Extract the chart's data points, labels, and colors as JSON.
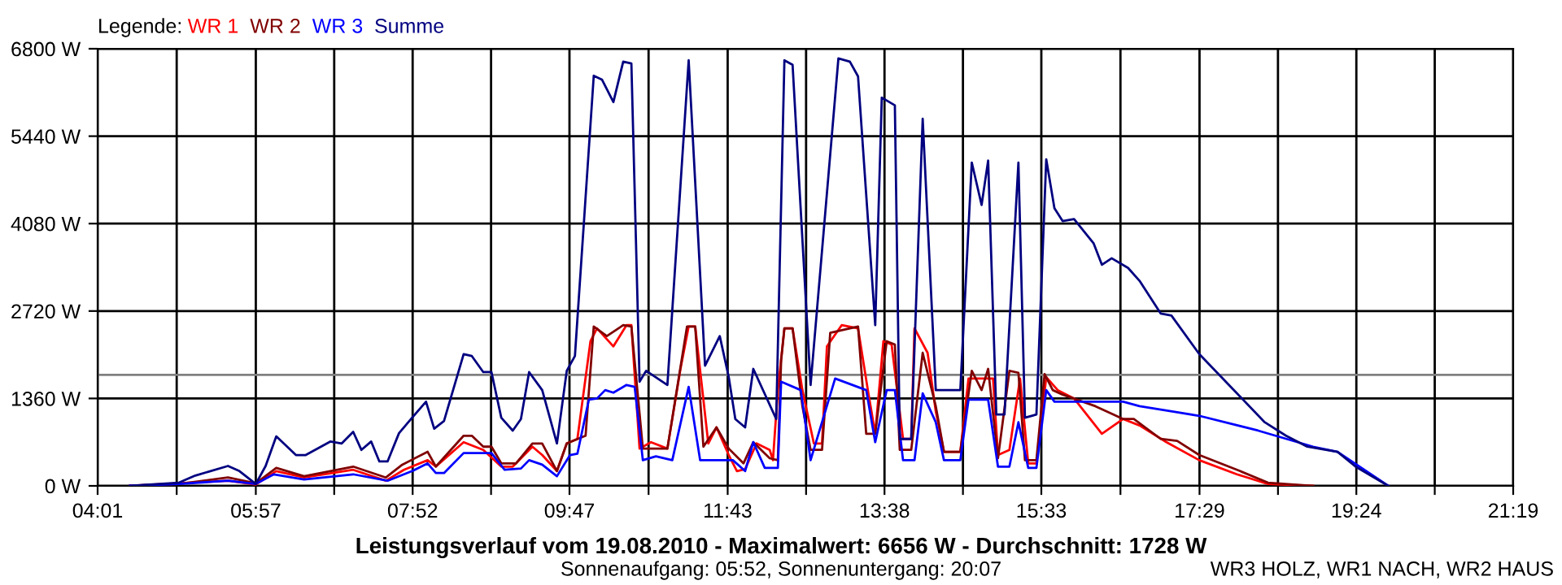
{
  "chart_data": {
    "type": "line",
    "title": "Leistungsverlauf vom 19.08.2010 - Maximalwert: 6656 W - Durchschnitt: 1728 W",
    "subtitle": "Sonnenaufgang: 05:52, Sonnenuntergang: 20:07",
    "legend_title": "Legende:",
    "annotations": [
      "WR3 HOLZ, WR1 NACH, WR2 HAUS"
    ],
    "xlim": [
      4.0167,
      21.3167
    ],
    "ylim": [
      0,
      6800
    ],
    "xticks": [
      {
        "value": 4.0167,
        "label": "04:01"
      },
      {
        "value": 4.983,
        "label": null
      },
      {
        "value": 5.95,
        "label": "05:57"
      },
      {
        "value": 6.908,
        "label": null
      },
      {
        "value": 7.8667,
        "label": "07:52"
      },
      {
        "value": 8.825,
        "label": null
      },
      {
        "value": 9.7833,
        "label": "09:47"
      },
      {
        "value": 10.75,
        "label": null
      },
      {
        "value": 11.7167,
        "label": "11:43"
      },
      {
        "value": 12.675,
        "label": null
      },
      {
        "value": 13.6333,
        "label": "13:38"
      },
      {
        "value": 14.592,
        "label": null
      },
      {
        "value": 15.55,
        "label": "15:33"
      },
      {
        "value": 16.517,
        "label": null
      },
      {
        "value": 17.4833,
        "label": "17:29"
      },
      {
        "value": 18.442,
        "label": null
      },
      {
        "value": 19.4,
        "label": "19:24"
      },
      {
        "value": 20.358,
        "label": null
      },
      {
        "value": 21.3167,
        "label": "21:19"
      }
    ],
    "yticks": [
      {
        "value": 0,
        "label": "0 W"
      },
      {
        "value": 1360,
        "label": "1360 W"
      },
      {
        "value": 2720,
        "label": "2720 W"
      },
      {
        "value": 4080,
        "label": "4080 W"
      },
      {
        "value": 5440,
        "label": "5440 W"
      },
      {
        "value": 6800,
        "label": "6800 W"
      }
    ],
    "grid": true,
    "legend": "top left",
    "marker": "none",
    "line_style": "solid",
    "ref_lines": [
      {
        "axis": "y",
        "value": 1728,
        "color": "#808080"
      }
    ],
    "series": [
      {
        "name": "WR 1",
        "color": "#ff0000",
        "x": [
          4.41,
          5.61,
          5.95,
          6.2,
          6.54,
          7.14,
          7.54,
          7.76,
          8.05,
          8.15,
          8.49,
          8.73,
          8.95,
          9.09,
          9.33,
          9.45,
          9.63,
          9.75,
          9.88,
          10.04,
          10.12,
          10.32,
          10.48,
          10.54,
          10.64,
          10.78,
          10.98,
          11.14,
          11.24,
          11.32,
          11.48,
          11.58,
          11.73,
          11.83,
          11.93,
          12.07,
          12.23,
          12.27,
          12.33,
          12.41,
          12.51,
          12.63,
          12.77,
          12.87,
          12.93,
          13.11,
          13.31,
          13.43,
          13.52,
          13.62,
          13.72,
          13.86,
          13.96,
          14.0,
          14.16,
          14.26,
          14.36,
          14.56,
          14.66,
          14.76,
          14.96,
          15.02,
          15.16,
          15.29,
          15.39,
          15.49,
          15.61,
          15.75,
          15.95,
          16.29,
          16.55,
          16.75,
          17.08,
          17.48,
          17.94,
          18.32,
          18.87
        ],
        "values": [
          0,
          80,
          20,
          230,
          130,
          250,
          80,
          250,
          400,
          300,
          680,
          560,
          300,
          300,
          610,
          480,
          230,
          660,
          730,
          2250,
          2450,
          2170,
          2500,
          2500,
          580,
          680,
          580,
          1820,
          2480,
          2480,
          660,
          910,
          480,
          230,
          260,
          660,
          560,
          400,
          1490,
          2450,
          2450,
          1490,
          660,
          660,
          2170,
          2500,
          2450,
          1490,
          810,
          2250,
          2200,
          730,
          730,
          2450,
          2070,
          1160,
          530,
          530,
          1670,
          1670,
          1670,
          480,
          560,
          1670,
          350,
          350,
          1690,
          1490,
          1360,
          810,
          1040,
          940,
          680,
          400,
          180,
          30,
          0
        ]
      },
      {
        "name": "WR 2",
        "color": "#800000",
        "x": [
          4.41,
          5.01,
          5.61,
          5.95,
          6.2,
          6.54,
          7.14,
          7.54,
          7.74,
          8.05,
          8.15,
          8.49,
          8.59,
          8.73,
          8.83,
          8.95,
          9.13,
          9.33,
          9.45,
          9.63,
          9.75,
          9.98,
          10.08,
          10.24,
          10.44,
          10.54,
          10.68,
          10.98,
          11.22,
          11.32,
          11.42,
          11.58,
          11.73,
          11.91,
          12.03,
          12.23,
          12.33,
          12.37,
          12.41,
          12.51,
          12.63,
          12.73,
          12.87,
          12.97,
          13.31,
          13.41,
          13.52,
          13.66,
          13.76,
          13.82,
          13.96,
          14.1,
          14.26,
          14.36,
          14.56,
          14.7,
          14.82,
          14.9,
          15.02,
          15.16,
          15.27,
          15.35,
          15.49,
          15.59,
          15.69,
          15.81,
          16.21,
          16.55,
          16.68,
          17.01,
          17.21,
          17.48,
          17.98,
          18.32,
          18.87
        ],
        "values": [
          0,
          30,
          130,
          40,
          280,
          150,
          300,
          130,
          330,
          530,
          300,
          780,
          780,
          610,
          610,
          350,
          350,
          660,
          660,
          230,
          660,
          780,
          2480,
          2330,
          2500,
          2480,
          580,
          580,
          2480,
          2480,
          610,
          910,
          580,
          350,
          680,
          430,
          400,
          1950,
          2450,
          2450,
          1240,
          560,
          560,
          2380,
          2480,
          810,
          810,
          2250,
          2200,
          560,
          560,
          2070,
          1240,
          530,
          530,
          1790,
          1490,
          1820,
          430,
          1790,
          1760,
          400,
          400,
          1740,
          1490,
          1420,
          1240,
          1040,
          1040,
          730,
          700,
          480,
          230,
          50,
          0
        ]
      },
      {
        "name": "WR 3",
        "color": "#0000ff",
        "x": [
          4.41,
          5.01,
          5.61,
          5.95,
          6.17,
          6.54,
          7.14,
          7.56,
          7.86,
          8.05,
          8.15,
          8.25,
          8.49,
          8.83,
          8.99,
          9.19,
          9.29,
          9.45,
          9.63,
          9.79,
          9.88,
          10.02,
          10.12,
          10.22,
          10.32,
          10.48,
          10.58,
          10.68,
          10.84,
          11.04,
          11.24,
          11.38,
          11.78,
          11.93,
          12.03,
          12.17,
          12.33,
          12.37,
          12.61,
          12.73,
          13.03,
          13.41,
          13.52,
          13.66,
          13.76,
          13.86,
          14.0,
          14.1,
          14.26,
          14.36,
          14.56,
          14.66,
          14.9,
          15.02,
          15.16,
          15.27,
          15.39,
          15.49,
          15.61,
          15.71,
          15.95,
          16.55,
          16.75,
          17.48,
          18.2,
          18.87,
          19.17,
          19.79
        ],
        "values": [
          0,
          30,
          80,
          30,
          180,
          100,
          180,
          80,
          230,
          350,
          200,
          200,
          510,
          510,
          250,
          270,
          400,
          330,
          150,
          480,
          500,
          1340,
          1360,
          1490,
          1450,
          1570,
          1540,
          400,
          460,
          400,
          1540,
          400,
          400,
          230,
          680,
          280,
          280,
          1620,
          1490,
          400,
          1670,
          1490,
          680,
          1490,
          1490,
          400,
          400,
          1440,
          990,
          400,
          400,
          1340,
          1340,
          300,
          300,
          990,
          280,
          280,
          1490,
          1310,
          1310,
          1310,
          1240,
          1090,
          860,
          610,
          530,
          0
        ]
      },
      {
        "name": "Summe",
        "color": "#000080",
        "x": [
          4.41,
          5.01,
          5.21,
          5.61,
          5.75,
          5.95,
          6.07,
          6.2,
          6.44,
          6.56,
          6.86,
          7.0,
          7.14,
          7.24,
          7.36,
          7.46,
          7.56,
          7.7,
          7.86,
          8.03,
          8.13,
          8.25,
          8.49,
          8.59,
          8.73,
          8.83,
          8.95,
          9.09,
          9.19,
          9.29,
          9.45,
          9.63,
          9.75,
          9.85,
          10.08,
          10.18,
          10.32,
          10.44,
          10.54,
          10.64,
          10.72,
          10.98,
          11.24,
          11.44,
          11.62,
          11.73,
          11.81,
          11.93,
          12.03,
          12.31,
          12.41,
          12.51,
          12.73,
          13.07,
          13.21,
          13.31,
          13.52,
          13.6,
          13.76,
          13.82,
          13.96,
          14.1,
          14.26,
          14.56,
          14.7,
          14.82,
          14.9,
          15.0,
          15.1,
          15.27,
          15.35,
          15.49,
          15.61,
          15.71,
          15.81,
          15.95,
          16.19,
          16.29,
          16.41,
          16.61,
          16.75,
          17.01,
          17.14,
          17.48,
          17.94,
          18.28,
          18.54,
          18.8,
          19.17,
          19.39,
          19.79
        ],
        "values": [
          0,
          50,
          160,
          310,
          230,
          30,
          310,
          770,
          480,
          480,
          690,
          660,
          840,
          560,
          690,
          380,
          380,
          820,
          1060,
          1310,
          890,
          1010,
          2050,
          2020,
          1770,
          1770,
          1060,
          860,
          1040,
          1770,
          1490,
          660,
          1790,
          2020,
          6380,
          6320,
          5970,
          6600,
          6570,
          1620,
          1790,
          1570,
          6620,
          1870,
          2330,
          1690,
          1040,
          910,
          1820,
          1040,
          6620,
          6550,
          1570,
          6650,
          6600,
          6370,
          2500,
          6040,
          5920,
          730,
          730,
          5710,
          1490,
          1490,
          5030,
          4370,
          5060,
          1110,
          1110,
          5030,
          1060,
          1110,
          5080,
          4320,
          4120,
          4150,
          3770,
          3440,
          3540,
          3390,
          3190,
          2680,
          2650,
          2050,
          1440,
          990,
          780,
          610,
          530,
          300,
          0
        ]
      }
    ]
  }
}
